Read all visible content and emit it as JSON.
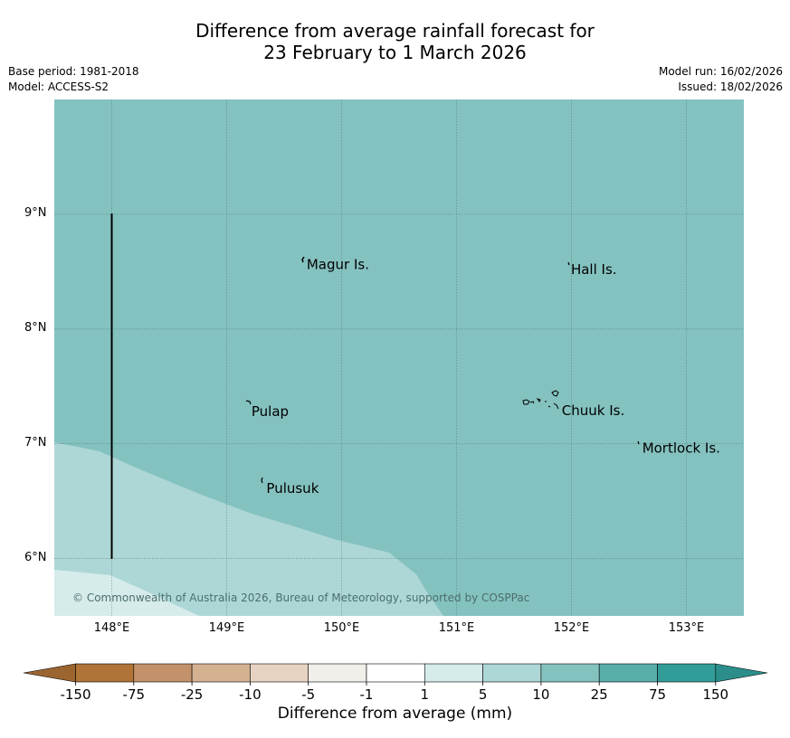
{
  "title": {
    "line1": "Difference from average rainfall forecast for",
    "line2": "23 February to 1 March 2026"
  },
  "meta": {
    "base_period": "Base period: 1981-2018",
    "model": "Model: ACCESS-S2",
    "model_run": "Model run: 16/02/2026",
    "issued": "Issued: 18/02/2026"
  },
  "map": {
    "lon_range": [
      147.5,
      153.5
    ],
    "lat_range": [
      5.5,
      10.0
    ],
    "x_ticks": [
      "148°E",
      "149°E",
      "150°E",
      "151°E",
      "152°E",
      "153°E"
    ],
    "y_ticks": [
      "9°N",
      "8°N",
      "7°N",
      "6°N"
    ],
    "background_class": "10 to 25",
    "labels": [
      {
        "name": "Magur Is.",
        "lon": 149.68,
        "lat": 8.56
      },
      {
        "name": "Hall Is.",
        "lon": 151.98,
        "lat": 8.52
      },
      {
        "name": "Pulap",
        "lon": 149.2,
        "lat": 7.28
      },
      {
        "name": "Chuuk Is.",
        "lon": 151.9,
        "lat": 7.29
      },
      {
        "name": "Mortlock Is.",
        "lon": 152.6,
        "lat": 6.96
      },
      {
        "name": "Pulusuk",
        "lon": 149.33,
        "lat": 6.61
      }
    ],
    "copyright": "© Commonwealth of Australia 2026, Bureau of Meteorology, supported by COSPPac"
  },
  "colorbar": {
    "ticks": [
      "-150",
      "-75",
      "-25",
      "-10",
      "-5",
      "-1",
      "1",
      "5",
      "10",
      "25",
      "75",
      "150"
    ],
    "colors": [
      "#b07438",
      "#c4926a",
      "#d4b191",
      "#e6d3c2",
      "#f2efea",
      "#ffffff",
      "#d6eceb",
      "#add7d6",
      "#84c2c0",
      "#59adab",
      "#329c98"
    ],
    "extend_low": "#9c6530",
    "extend_high": "#2b8e8a",
    "label": "Difference from average (mm)"
  }
}
